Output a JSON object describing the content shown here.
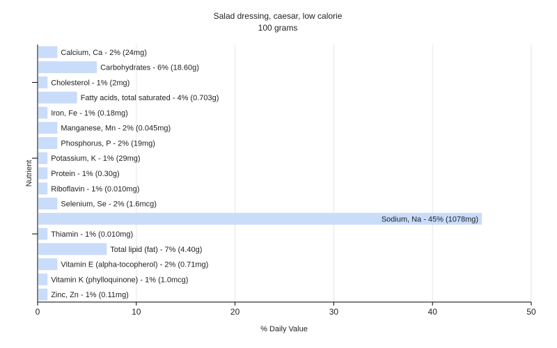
{
  "chart_data": {
    "type": "bar",
    "orientation": "horizontal",
    "title": "Salad dressing, caesar, low calorie",
    "subtitle": "100 grams",
    "xlabel": "% Daily Value",
    "ylabel": "Nutrient",
    "xlim": [
      0,
      50
    ],
    "xticks": [
      "0",
      "10",
      "20",
      "30",
      "40",
      "50"
    ],
    "grid": true,
    "bar_color": "#c9dcfa",
    "categories": [
      "Calcium, Ca",
      "Carbohydrates",
      "Cholesterol",
      "Fatty acids, total saturated",
      "Iron, Fe",
      "Manganese, Mn",
      "Phosphorus, P",
      "Potassium, K",
      "Protein",
      "Riboflavin",
      "Selenium, Se",
      "Sodium, Na",
      "Thiamin",
      "Total lipid (fat)",
      "Vitamin E (alpha-tocopherol)",
      "Vitamin K (phylloquinone)",
      "Zinc, Zn"
    ],
    "values": [
      2,
      6,
      1,
      4,
      1,
      2,
      2,
      1,
      1,
      1,
      2,
      45,
      1,
      7,
      2,
      1,
      1
    ],
    "labels": [
      "Calcium, Ca - 2% (24mg)",
      "Carbohydrates - 6% (18.60g)",
      "Cholesterol - 1% (2mg)",
      "Fatty acids, total saturated - 4% (0.703g)",
      "Iron, Fe - 1% (0.18mg)",
      "Manganese, Mn - 2% (0.045mg)",
      "Phosphorus, P - 2% (19mg)",
      "Potassium, K - 1% (29mg)",
      "Protein - 1% (0.30g)",
      "Riboflavin - 1% (0.010mg)",
      "Selenium, Se - 2% (1.6mcg)",
      "Sodium, Na - 45% (1078mg)",
      "Thiamin - 1% (0.010mg)",
      "Total lipid (fat) - 7% (4.40g)",
      "Vitamin E (alpha-tocopherol) - 2% (0.71mg)",
      "Vitamin K (phylloquinone) - 1% (1.0mcg)",
      "Zinc, Zn - 1% (0.11mg)"
    ]
  }
}
